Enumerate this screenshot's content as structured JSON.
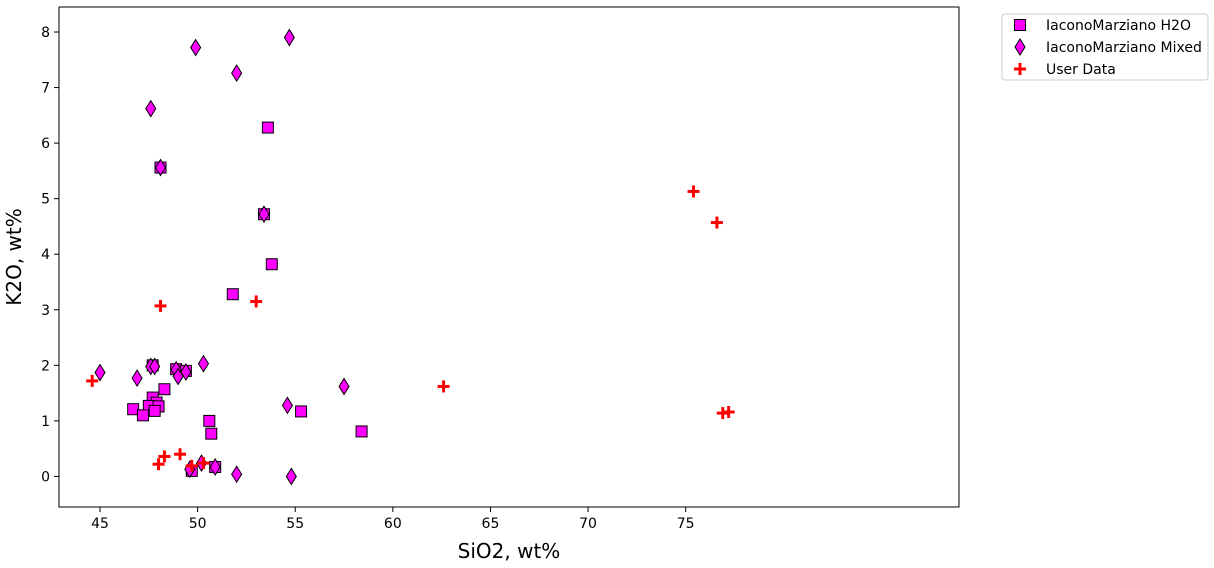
{
  "chart_data": {
    "type": "scatter",
    "title": "",
    "xlabel": "SiO2, wt%",
    "ylabel": "K2O, wt%",
    "xlim": [
      42.9,
      89.0
    ],
    "ylim": [
      -0.55,
      8.45
    ],
    "xticks": [
      45,
      50,
      55,
      60,
      65,
      70,
      75
    ],
    "yticks": [
      0,
      1,
      2,
      3,
      4,
      5,
      6,
      7,
      8
    ],
    "grid": false,
    "legend_position": "outside-top-right",
    "series": [
      {
        "name": "IaconoMarziano H2O",
        "marker": "square",
        "color": "#ff00ff",
        "edge_color": "#000000",
        "points": [
          [
            53.6,
            6.28
          ],
          [
            48.1,
            5.56
          ],
          [
            53.4,
            4.72
          ],
          [
            53.8,
            3.82
          ],
          [
            51.8,
            3.28
          ],
          [
            47.7,
            2.0
          ],
          [
            48.9,
            1.93
          ],
          [
            49.4,
            1.9
          ],
          [
            48.3,
            1.57
          ],
          [
            47.7,
            1.42
          ],
          [
            47.9,
            1.33
          ],
          [
            47.5,
            1.27
          ],
          [
            48.0,
            1.26
          ],
          [
            46.7,
            1.21
          ],
          [
            47.8,
            1.18
          ],
          [
            47.2,
            1.1
          ],
          [
            50.6,
            1.0
          ],
          [
            55.3,
            1.17
          ],
          [
            58.4,
            0.81
          ],
          [
            50.7,
            0.77
          ],
          [
            50.9,
            0.17
          ],
          [
            49.7,
            0.1
          ]
        ]
      },
      {
        "name": "IaconoMarziano Mixed",
        "marker": "thin_diamond",
        "color": "#ff00ff",
        "edge_color": "#000000",
        "points": [
          [
            54.7,
            7.9
          ],
          [
            49.9,
            7.72
          ],
          [
            52.0,
            7.26
          ],
          [
            47.6,
            6.62
          ],
          [
            48.1,
            5.56
          ],
          [
            53.4,
            4.72
          ],
          [
            50.3,
            2.03
          ],
          [
            47.6,
            1.98
          ],
          [
            47.8,
            1.98
          ],
          [
            48.9,
            1.92
          ],
          [
            49.4,
            1.88
          ],
          [
            49.0,
            1.8
          ],
          [
            45.0,
            1.87
          ],
          [
            46.9,
            1.77
          ],
          [
            57.5,
            1.62
          ],
          [
            54.6,
            1.28
          ],
          [
            50.9,
            0.17
          ],
          [
            50.2,
            0.24
          ],
          [
            49.6,
            0.13
          ],
          [
            52.0,
            0.04
          ],
          [
            54.8,
            0.0
          ]
        ]
      },
      {
        "name": "User Data",
        "marker": "plus",
        "color": "#ff0000",
        "points": [
          [
            75.4,
            5.13
          ],
          [
            76.6,
            4.57
          ],
          [
            48.1,
            3.07
          ],
          [
            53.0,
            3.15
          ],
          [
            44.6,
            1.72
          ],
          [
            62.6,
            1.62
          ],
          [
            77.2,
            1.16
          ],
          [
            76.9,
            1.14
          ],
          [
            49.1,
            0.4
          ],
          [
            48.3,
            0.36
          ],
          [
            48.0,
            0.22
          ],
          [
            50.3,
            0.24
          ],
          [
            49.7,
            0.19
          ]
        ]
      }
    ]
  }
}
